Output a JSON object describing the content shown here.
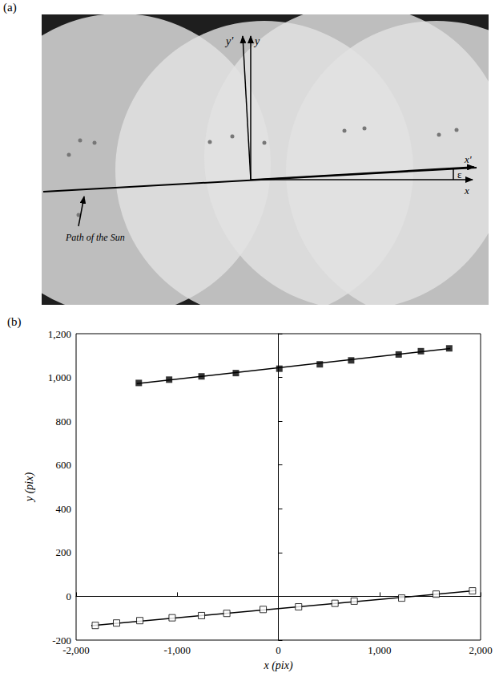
{
  "panel_a": {
    "label": "(a)",
    "y_prime": "y'",
    "y": "y",
    "x_prime": "x'",
    "x": "x",
    "angle": "ε",
    "path_label": "Path of the Sun"
  },
  "chart_data": {
    "type": "scatter",
    "title": "(b)",
    "x_label": "x (pix)",
    "y_label": "y (pix)",
    "xlim": [
      -2000,
      2000
    ],
    "xticks": [
      -2000,
      -1000,
      0,
      1000,
      2000
    ],
    "ylim": [
      -200,
      1200
    ],
    "yticks": [
      -200,
      0,
      200,
      400,
      600,
      800,
      1000,
      1200
    ],
    "grid": false,
    "series": [
      {
        "type": "scatter",
        "marker": "square_filled",
        "color": "#000000",
        "x": [
          -1380,
          -1080,
          -760,
          -420,
          10,
          410,
          720,
          1190,
          1410,
          1690
        ],
        "values": [
          975,
          990,
          1005,
          1020,
          1040,
          1060,
          1078,
          1105,
          1120,
          1133
        ]
      },
      {
        "type": "line",
        "line_style": "solid",
        "color": "#000000",
        "x": [
          -1400,
          1700
        ],
        "values": [
          972,
          1132
        ]
      },
      {
        "type": "scatter",
        "marker": "square_open",
        "color": "#000000",
        "x": [
          -1810,
          -1600,
          -1370,
          -1050,
          -760,
          -510,
          -150,
          200,
          560,
          750,
          1220,
          1560,
          1920
        ],
        "values": [
          -133,
          -122,
          -111,
          -98,
          -88,
          -78,
          -60,
          -48,
          -32,
          -22,
          -8,
          10,
          25
        ]
      },
      {
        "type": "line",
        "line_style": "solid",
        "color": "#000000",
        "x": [
          -1850,
          1950
        ],
        "values": [
          -134,
          26
        ]
      }
    ]
  }
}
